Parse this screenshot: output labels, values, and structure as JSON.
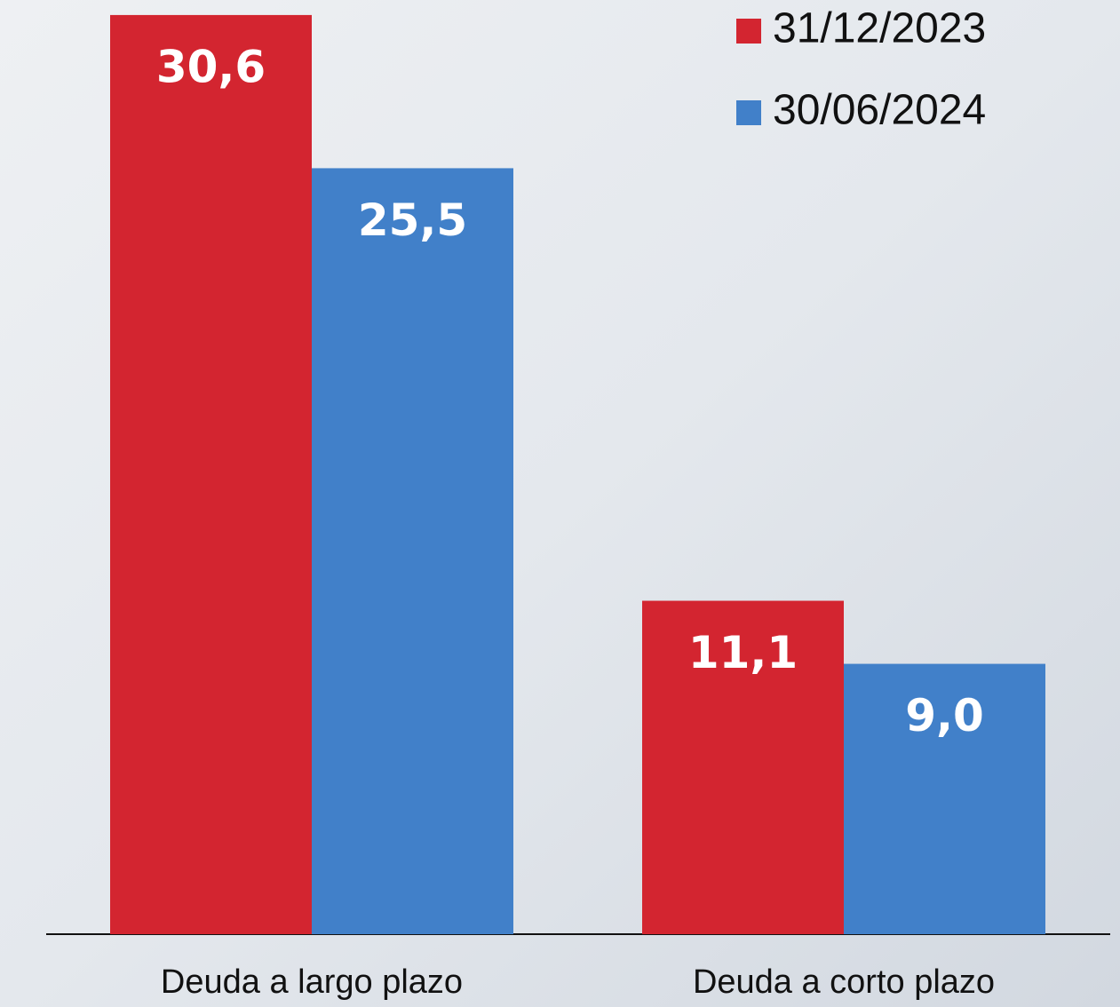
{
  "chart_data": {
    "type": "bar",
    "categories": [
      "Deuda a largo plazo",
      "Deuda a corto plazo"
    ],
    "series": [
      {
        "name": "31/12/2023",
        "color": "#d32530",
        "values": [
          30.6,
          11.1
        ],
        "value_labels": [
          "30,6",
          "11,1"
        ]
      },
      {
        "name": "30/06/2024",
        "color": "#4180c9",
        "values": [
          25.5,
          9.0
        ],
        "value_labels": [
          "25,5",
          "9,0"
        ]
      }
    ],
    "ylim": [
      0,
      31.1
    ]
  }
}
